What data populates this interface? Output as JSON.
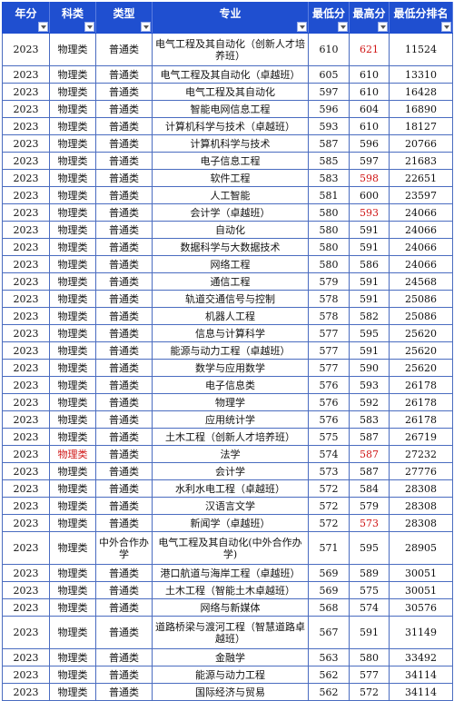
{
  "headers": [
    "年分",
    "科类",
    "类型",
    "专业",
    "最低分",
    "最高分",
    "最低分排名"
  ],
  "rows": [
    {
      "year": "2023",
      "subject": "物理类",
      "type": "普通类",
      "major": "电气工程及其自动化（创新人才培养班）",
      "min": "610",
      "max": "621",
      "rank": "11524",
      "tall": true,
      "red": [
        "max"
      ]
    },
    {
      "year": "2023",
      "subject": "物理类",
      "type": "普通类",
      "major": "电气工程及其自动化（卓越班）",
      "min": "605",
      "max": "610",
      "rank": "13310",
      "tall": false,
      "red": []
    },
    {
      "year": "2023",
      "subject": "物理类",
      "type": "普通类",
      "major": "电气工程及其自动化",
      "min": "597",
      "max": "610",
      "rank": "16428",
      "tall": false,
      "red": []
    },
    {
      "year": "2023",
      "subject": "物理类",
      "type": "普通类",
      "major": "智能电网信息工程",
      "min": "596",
      "max": "604",
      "rank": "16890",
      "tall": false,
      "red": []
    },
    {
      "year": "2023",
      "subject": "物理类",
      "type": "普通类",
      "major": "计算机科学与技术（卓越班）",
      "min": "593",
      "max": "610",
      "rank": "18127",
      "tall": false,
      "red": []
    },
    {
      "year": "2023",
      "subject": "物理类",
      "type": "普通类",
      "major": "计算机科学与技术",
      "min": "587",
      "max": "596",
      "rank": "20766",
      "tall": false,
      "red": []
    },
    {
      "year": "2023",
      "subject": "物理类",
      "type": "普通类",
      "major": "电子信息工程",
      "min": "585",
      "max": "597",
      "rank": "21683",
      "tall": false,
      "red": []
    },
    {
      "year": "2023",
      "subject": "物理类",
      "type": "普通类",
      "major": "软件工程",
      "min": "583",
      "max": "598",
      "rank": "22651",
      "tall": false,
      "red": [
        "max"
      ]
    },
    {
      "year": "2023",
      "subject": "物理类",
      "type": "普通类",
      "major": "人工智能",
      "min": "581",
      "max": "600",
      "rank": "23597",
      "tall": false,
      "red": []
    },
    {
      "year": "2023",
      "subject": "物理类",
      "type": "普通类",
      "major": "会计学（卓越班）",
      "min": "580",
      "max": "593",
      "rank": "24066",
      "tall": false,
      "red": [
        "max"
      ]
    },
    {
      "year": "2023",
      "subject": "物理类",
      "type": "普通类",
      "major": "自动化",
      "min": "580",
      "max": "591",
      "rank": "24066",
      "tall": false,
      "red": []
    },
    {
      "year": "2023",
      "subject": "物理类",
      "type": "普通类",
      "major": "数据科学与大数据技术",
      "min": "580",
      "max": "591",
      "rank": "24066",
      "tall": false,
      "red": []
    },
    {
      "year": "2023",
      "subject": "物理类",
      "type": "普通类",
      "major": "网络工程",
      "min": "580",
      "max": "586",
      "rank": "24066",
      "tall": false,
      "red": []
    },
    {
      "year": "2023",
      "subject": "物理类",
      "type": "普通类",
      "major": "通信工程",
      "min": "579",
      "max": "591",
      "rank": "24568",
      "tall": false,
      "red": []
    },
    {
      "year": "2023",
      "subject": "物理类",
      "type": "普通类",
      "major": "轨道交通信号与控制",
      "min": "578",
      "max": "591",
      "rank": "25086",
      "tall": false,
      "red": []
    },
    {
      "year": "2023",
      "subject": "物理类",
      "type": "普通类",
      "major": "机器人工程",
      "min": "578",
      "max": "582",
      "rank": "25086",
      "tall": false,
      "red": []
    },
    {
      "year": "2023",
      "subject": "物理类",
      "type": "普通类",
      "major": "信息与计算科学",
      "min": "577",
      "max": "595",
      "rank": "25620",
      "tall": false,
      "red": []
    },
    {
      "year": "2023",
      "subject": "物理类",
      "type": "普通类",
      "major": "能源与动力工程（卓越班）",
      "min": "577",
      "max": "591",
      "rank": "25620",
      "tall": false,
      "red": []
    },
    {
      "year": "2023",
      "subject": "物理类",
      "type": "普通类",
      "major": "数学与应用数学",
      "min": "577",
      "max": "590",
      "rank": "25620",
      "tall": false,
      "red": []
    },
    {
      "year": "2023",
      "subject": "物理类",
      "type": "普通类",
      "major": "电子信息类",
      "min": "576",
      "max": "593",
      "rank": "26178",
      "tall": false,
      "red": []
    },
    {
      "year": "2023",
      "subject": "物理类",
      "type": "普通类",
      "major": "物理学",
      "min": "576",
      "max": "592",
      "rank": "26178",
      "tall": false,
      "red": []
    },
    {
      "year": "2023",
      "subject": "物理类",
      "type": "普通类",
      "major": "应用统计学",
      "min": "576",
      "max": "583",
      "rank": "26178",
      "tall": false,
      "red": []
    },
    {
      "year": "2023",
      "subject": "物理类",
      "type": "普通类",
      "major": "土木工程（创新人才培养班）",
      "min": "575",
      "max": "587",
      "rank": "26719",
      "tall": false,
      "red": []
    },
    {
      "year": "2023",
      "subject": "物理类",
      "type": "普通类",
      "major": "法学",
      "min": "574",
      "max": "587",
      "rank": "27232",
      "tall": false,
      "red": [
        "subject",
        "max"
      ]
    },
    {
      "year": "2023",
      "subject": "物理类",
      "type": "普通类",
      "major": "会计学",
      "min": "573",
      "max": "587",
      "rank": "27776",
      "tall": false,
      "red": []
    },
    {
      "year": "2023",
      "subject": "物理类",
      "type": "普通类",
      "major": "水利水电工程（卓越班）",
      "min": "572",
      "max": "584",
      "rank": "28308",
      "tall": false,
      "red": []
    },
    {
      "year": "2023",
      "subject": "物理类",
      "type": "普通类",
      "major": "汉语言文学",
      "min": "572",
      "max": "579",
      "rank": "28308",
      "tall": false,
      "red": []
    },
    {
      "year": "2023",
      "subject": "物理类",
      "type": "普通类",
      "major": "新闻学（卓越班）",
      "min": "572",
      "max": "573",
      "rank": "28308",
      "tall": false,
      "red": [
        "max"
      ]
    },
    {
      "year": "2023",
      "subject": "物理类",
      "type": "中外合作办学",
      "major": "电气工程及其自动化(中外合作办学)",
      "min": "571",
      "max": "595",
      "rank": "28905",
      "tall": true,
      "red": []
    },
    {
      "year": "2023",
      "subject": "物理类",
      "type": "普通类",
      "major": "港口航道与海岸工程（卓越班）",
      "min": "569",
      "max": "589",
      "rank": "30051",
      "tall": false,
      "red": []
    },
    {
      "year": "2023",
      "subject": "物理类",
      "type": "普通类",
      "major": "土木工程（智能土木卓越班）",
      "min": "569",
      "max": "575",
      "rank": "30051",
      "tall": false,
      "red": []
    },
    {
      "year": "2023",
      "subject": "物理类",
      "type": "普通类",
      "major": "网络与新媒体",
      "min": "568",
      "max": "574",
      "rank": "30576",
      "tall": false,
      "red": []
    },
    {
      "year": "2023",
      "subject": "物理类",
      "type": "普通类",
      "major": "道路桥梁与渡河工程（智慧道路卓越班）",
      "min": "567",
      "max": "591",
      "rank": "31149",
      "tall": true,
      "red": []
    },
    {
      "year": "2023",
      "subject": "物理类",
      "type": "普通类",
      "major": "金融学",
      "min": "563",
      "max": "580",
      "rank": "33492",
      "tall": false,
      "red": []
    },
    {
      "year": "2023",
      "subject": "物理类",
      "type": "普通类",
      "major": "能源与动力工程",
      "min": "562",
      "max": "577",
      "rank": "34114",
      "tall": false,
      "red": []
    },
    {
      "year": "2023",
      "subject": "物理类",
      "type": "普通类",
      "major": "国际经济与贸易",
      "min": "562",
      "max": "572",
      "rank": "34114",
      "tall": false,
      "red": []
    }
  ]
}
